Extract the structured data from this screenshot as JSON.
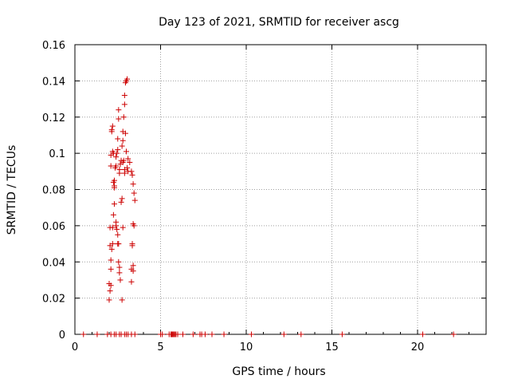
{
  "chart_data": {
    "type": "scatter",
    "title": "Day 123 of 2021, SRMTID for receiver ascg",
    "xlabel": "GPS time / hours",
    "ylabel": "SRMTID / TECUs",
    "xlim": [
      0,
      24
    ],
    "ylim": [
      0,
      0.16
    ],
    "xticks": [
      0,
      5,
      10,
      15,
      20
    ],
    "yticks": [
      0,
      0.02,
      0.04,
      0.06,
      0.08,
      0.1,
      0.12,
      0.14,
      0.16
    ],
    "xtick_labels": [
      "0",
      "5",
      "10",
      "15",
      "20"
    ],
    "ytick_labels": [
      "0",
      "0.02",
      "0.04",
      "0.06",
      "0.08",
      "0.1",
      "0.12",
      "0.14",
      "0.16"
    ],
    "grid": true,
    "marker": "+",
    "color": "#cc0000",
    "series": [
      {
        "x": [
          2.05,
          2.1,
          2.1,
          2.1,
          2.15,
          2.2,
          2.2,
          2.25,
          2.3,
          2.3,
          2.35,
          2.4,
          2.4,
          2.45,
          2.5,
          2.5,
          2.55,
          2.55,
          2.6,
          2.6,
          2.65,
          2.7,
          2.75,
          2.8,
          2.8,
          2.85,
          2.9,
          2.9,
          2.95,
          3.0,
          3.05,
          3.1,
          3.2,
          3.3,
          3.35,
          3.4,
          3.45,
          3.5,
          2.0,
          2.0,
          2.05,
          2.05,
          2.1,
          2.1,
          2.15,
          2.15,
          2.2,
          2.2,
          2.25,
          2.25,
          2.3,
          2.3,
          2.4,
          2.4,
          2.45,
          2.5,
          2.5,
          2.55,
          2.55,
          2.6,
          2.6,
          2.65,
          2.7,
          2.75,
          2.75,
          2.8,
          2.8,
          2.85,
          2.9,
          2.9,
          2.95,
          3.0,
          3.05,
          3.1,
          3.3,
          3.3,
          3.35,
          3.35,
          3.4,
          3.4,
          3.4,
          3.45,
          0.5,
          1.3,
          1.9,
          2.1,
          2.3,
          2.4,
          2.6,
          2.7,
          2.9,
          3.0,
          3.1,
          3.3,
          3.5,
          5.0,
          5.1,
          5.5,
          5.6,
          5.65,
          5.7,
          5.75,
          5.8,
          5.85,
          5.9,
          6.0,
          6.3,
          6.9,
          7.3,
          7.4,
          7.6,
          8.0,
          8.7,
          10.3,
          12.2,
          13.2,
          15.6,
          20.3,
          22.1
        ],
        "y": [
          0.024,
          0.027,
          0.036,
          0.041,
          0.047,
          0.05,
          0.059,
          0.066,
          0.081,
          0.085,
          0.092,
          0.093,
          0.098,
          0.1,
          0.102,
          0.108,
          0.119,
          0.124,
          0.089,
          0.091,
          0.094,
          0.096,
          0.104,
          0.107,
          0.112,
          0.12,
          0.127,
          0.132,
          0.139,
          0.14,
          0.141,
          0.097,
          0.095,
          0.09,
          0.088,
          0.083,
          0.078,
          0.074,
          0.019,
          0.028,
          0.049,
          0.059,
          0.093,
          0.099,
          0.112,
          0.113,
          0.115,
          0.101,
          0.1,
          0.084,
          0.082,
          0.072,
          0.062,
          0.06,
          0.058,
          0.055,
          0.05,
          0.05,
          0.04,
          0.037,
          0.034,
          0.03,
          0.073,
          0.075,
          0.019,
          0.059,
          0.095,
          0.096,
          0.089,
          0.091,
          0.111,
          0.101,
          0.092,
          0.09,
          0.036,
          0.029,
          0.05,
          0.049,
          0.035,
          0.038,
          0.061,
          0.06,
          0,
          0,
          0,
          0,
          0,
          0,
          0,
          0,
          0,
          0,
          0,
          0,
          0,
          0,
          0,
          0,
          0,
          0,
          0,
          0,
          0,
          0,
          0,
          0,
          0,
          0,
          0,
          0,
          0,
          0,
          0,
          0,
          0,
          0,
          0,
          0,
          0
        ]
      }
    ]
  }
}
